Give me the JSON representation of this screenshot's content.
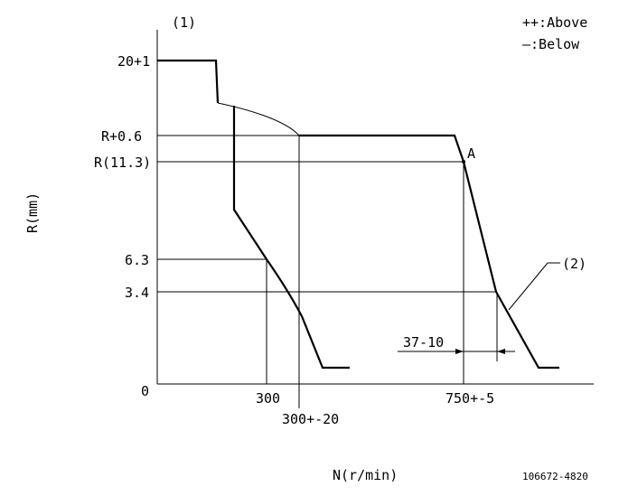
{
  "diagram": {
    "corner_label": "(1)",
    "legend_above": "++:Above",
    "legend_below": "—:Below",
    "y_axis_label": "R(mm)",
    "x_axis_label": "N(r/min)",
    "drawing_number": "106672-4820",
    "y_ticks": {
      "t1": "20+1",
      "t2": "R+0.6",
      "t3": "R(11.3)",
      "t4": "6.3",
      "t5": "3.4",
      "t6": "0"
    },
    "x_ticks": {
      "t1": "300",
      "t2": "300+-20",
      "t3": "750+-5"
    },
    "point_label": "A",
    "callout_label": "(2)",
    "dimension_label": "37-10"
  }
}
